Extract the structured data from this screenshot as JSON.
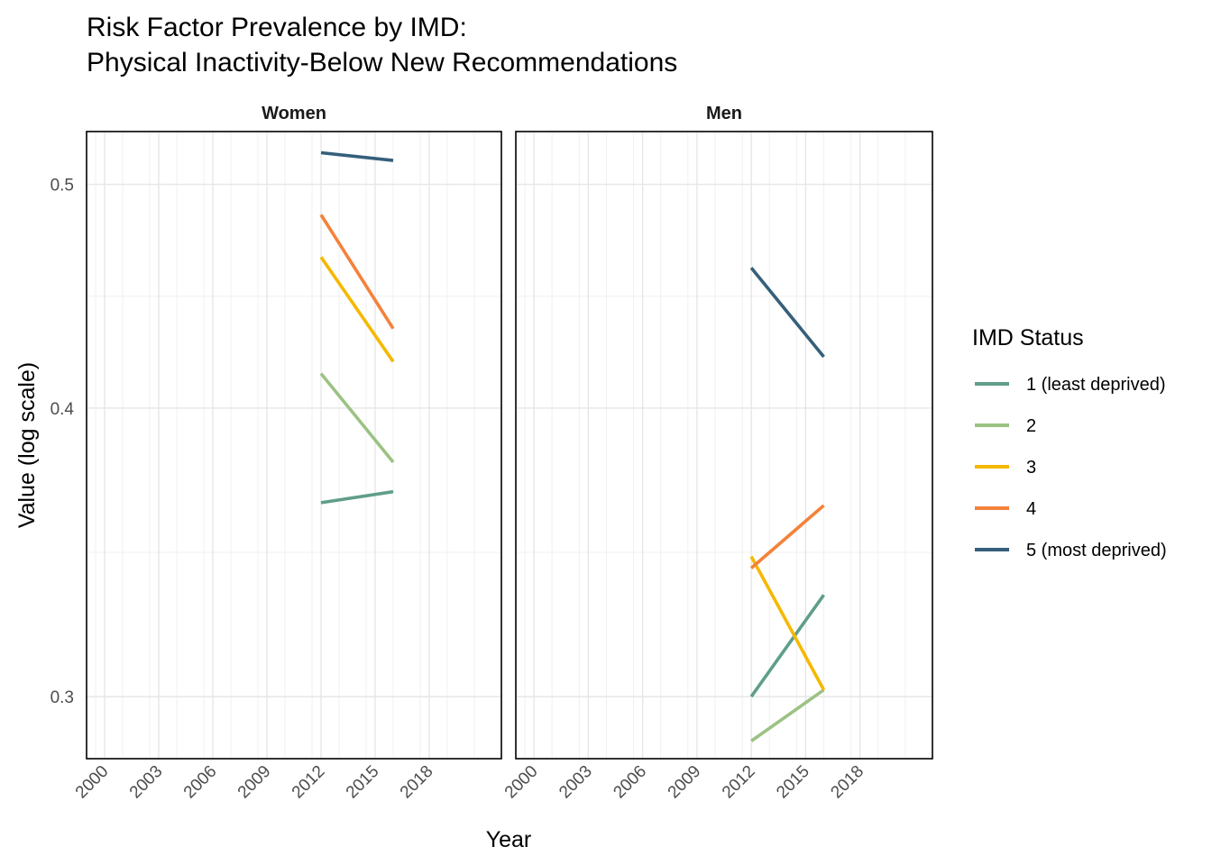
{
  "chart_data": {
    "type": "line",
    "title": "Risk Factor Prevalence by IMD:",
    "subtitle": "Physical Inactivity-Below New Recommendations",
    "xlabel": "Year",
    "ylabel": "Value (log scale)",
    "y_scale": "log",
    "xlim": [
      1999,
      2022
    ],
    "ylim": [
      0.282,
      0.527
    ],
    "x_ticks": [
      2000,
      2003,
      2006,
      2009,
      2012,
      2015,
      2018
    ],
    "x_tick_labels": [
      "2000",
      "2003",
      "2006",
      "2009",
      "2012",
      "2015",
      "2018"
    ],
    "y_ticks": [
      0.3,
      0.4,
      0.5
    ],
    "y_tick_labels": [
      "0.3",
      "0.4",
      "0.5"
    ],
    "grid": true,
    "legend": {
      "title": "IMD Status",
      "placement": "right",
      "entries": [
        {
          "label": "1 (least deprived)",
          "color": "#5f9e8a"
        },
        {
          "label": "2",
          "color": "#9cc283"
        },
        {
          "label": "3",
          "color": "#f5b800"
        },
        {
          "label": "4",
          "color": "#f4823a"
        },
        {
          "label": "5 (most deprived)",
          "color": "#355f7a"
        }
      ]
    },
    "panels": [
      {
        "strip": "Women",
        "series": [
          {
            "group": 0,
            "x": [
              2012,
              2016
            ],
            "y": [
              0.364,
              0.368
            ]
          },
          {
            "group": 1,
            "x": [
              2012,
              2016
            ],
            "y": [
              0.414,
              0.379
            ]
          },
          {
            "group": 2,
            "x": [
              2012,
              2016
            ],
            "y": [
              0.465,
              0.419
            ]
          },
          {
            "group": 3,
            "x": [
              2012,
              2016
            ],
            "y": [
              0.485,
              0.433
            ]
          },
          {
            "group": 4,
            "x": [
              2012,
              2016
            ],
            "y": [
              0.516,
              0.512
            ]
          }
        ]
      },
      {
        "strip": "Men",
        "series": [
          {
            "group": 0,
            "x": [
              2012,
              2016
            ],
            "y": [
              0.3,
              0.332
            ]
          },
          {
            "group": 1,
            "x": [
              2012,
              2016
            ],
            "y": [
              0.287,
              0.302
            ]
          },
          {
            "group": 2,
            "x": [
              2012,
              2016
            ],
            "y": [
              0.345,
              0.302
            ]
          },
          {
            "group": 3,
            "x": [
              2012,
              2016
            ],
            "y": [
              0.341,
              0.363
            ]
          },
          {
            "group": 4,
            "x": [
              2012,
              2016
            ],
            "y": [
              0.46,
              0.421
            ]
          }
        ]
      }
    ]
  }
}
